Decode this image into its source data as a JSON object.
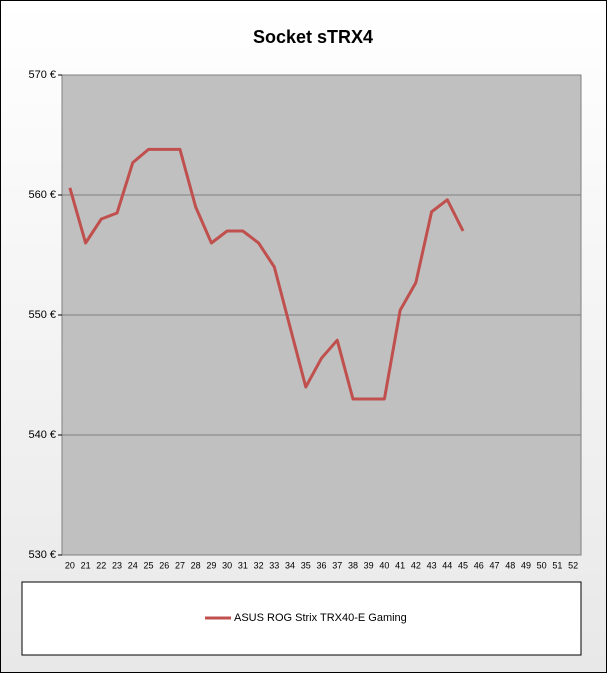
{
  "chart_data": {
    "type": "line",
    "title": "Socket sTRX4",
    "categories": [
      "20",
      "21",
      "22",
      "23",
      "24",
      "25",
      "26",
      "27",
      "28",
      "29",
      "30",
      "31",
      "32",
      "33",
      "34",
      "35",
      "36",
      "37",
      "38",
      "39",
      "40",
      "41",
      "42",
      "43",
      "44",
      "45",
      "46",
      "47",
      "48",
      "49",
      "50",
      "51",
      "52"
    ],
    "series": [
      {
        "name": "ASUS ROG Strix TRX40-E Gaming",
        "color": "#c0504d",
        "values": [
          560.6,
          556,
          558,
          558.5,
          562.7,
          563.8,
          563.8,
          563.8,
          559,
          556,
          557,
          557,
          556,
          554,
          549,
          544,
          546.4,
          547.9,
          543,
          543,
          543,
          550.4,
          552.7,
          558.6,
          559.6,
          557,
          null,
          null,
          null,
          null,
          null,
          null,
          null
        ]
      }
    ],
    "ylim": [
      530,
      570
    ],
    "yticks": [
      {
        "value": 530,
        "label": "530 €"
      },
      {
        "value": 540,
        "label": "540 €"
      },
      {
        "value": 550,
        "label": "550 €"
      },
      {
        "value": 560,
        "label": "560 €"
      },
      {
        "value": 570,
        "label": "570 €"
      }
    ],
    "grid": true,
    "legend": "bottom"
  }
}
